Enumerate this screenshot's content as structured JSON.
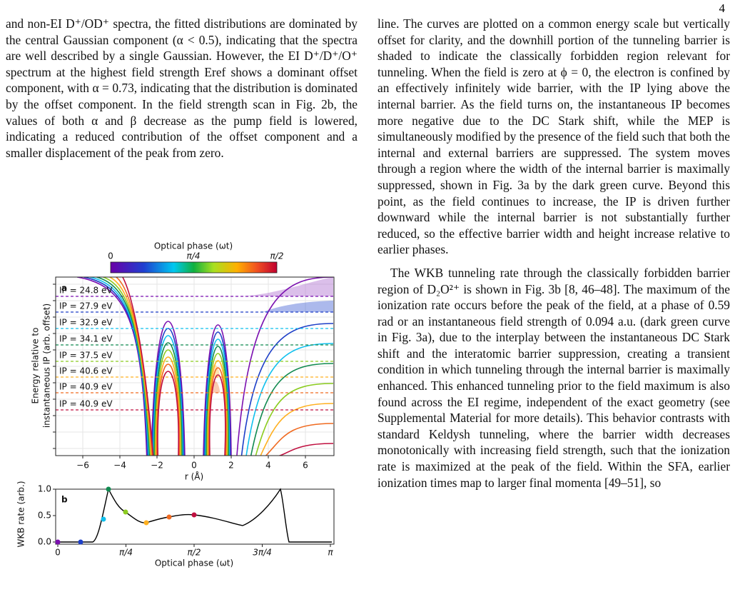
{
  "page_number": "4",
  "left_column": {
    "paragraphs": [
      "and non-EI D⁺/OD⁺ spectra, the fitted distributions are dominated by the central Gaussian component (α < 0.5), indicating that the spectra are well described by a single Gaussian. However, the EI D⁺/D⁺/O⁺ spectrum at the highest field strength Eref shows a dominant offset component, with α = 0.73, indicating that the distribution is dominated by the offset component. In the field strength scan in Fig. 2b, the values of both α and β decrease as the pump field is lowered, indicating a reduced contribution of the offset component and a smaller displacement of the peak from zero."
    ]
  },
  "figure": {
    "colorbar": {
      "label": "Optical phase (ωt)",
      "ticks": [
        "0",
        "π/4",
        "π/2"
      ]
    },
    "panel_a": {
      "label": "a",
      "ip_labels": [
        "IP = 24.8 eV",
        "IP = 27.9 eV",
        "IP = 32.9 eV",
        "IP = 34.1 eV",
        "IP = 37.5 eV",
        "IP = 40.6 eV",
        "IP = 40.9 eV",
        "IP = 40.9 eV"
      ],
      "x_ticks": [
        "−6",
        "−4",
        "−2",
        "0",
        "2",
        "4",
        "6"
      ],
      "x_label": "r (Å)",
      "y_label": [
        "Energy relative to",
        "instantaneous IP (arb. offset)"
      ]
    },
    "panel_b": {
      "label": "b",
      "y_ticks": [
        "0.0",
        "0.5",
        "1.0"
      ],
      "x_ticks": [
        "0",
        "π/4",
        "π/2",
        "3π/4",
        "π"
      ],
      "x_label": "Optical phase (ωt)",
      "y_label": "WKB rate (arb.)"
    }
  },
  "right_column": {
    "paragraphs": [
      "line. The curves are plotted on a common energy scale but vertically offset for clarity, and the downhill portion of the tunneling barrier is shaded to indicate the classically forbidden region relevant for tunneling. When the field is zero at ϕ = 0, the electron is confined by an effectively infinitely wide barrier, with the IP lying above the internal barrier. As the field turns on, the instantaneous IP becomes more negative due to the DC Stark shift, while the MEP is simultaneously modified by the presence of the field such that both the internal and external barriers are suppressed. The system moves through a region where the width of the internal barrier is maximally suppressed, shown in Fig. 3a by the dark green curve. Beyond this point, as the field continues to increase, the IP is driven further downward while the internal barrier is not substantially further reduced, so the effective barrier width and height increase relative to earlier phases.",
      "The WKB tunneling rate through the classically forbidden barrier region of D₂O²⁺ is shown in Fig. 3b [8, 46–48]. The maximum of the ionization rate occurs before the peak of the field, at a phase of 0.59 rad or an instantaneous field strength of 0.094 a.u. (dark green curve in Fig. 3a), due to the interplay between the instantaneous DC Stark shift and the interatomic barrier suppression, creating a transient condition in which tunneling through the internal barrier is maximally enhanced. This enhanced tunneling prior to the field maximum is also found across the EI regime, independent of the exact geometry (see Supplemental Material for more details). This behavior contrasts with standard Keldysh tunneling, where the barrier width decreases monotonically with increasing field strength, such that the ionization rate is maximized at the peak of the field. Within the SFA, earlier ionization times map to larger final momenta [49–51], so"
    ]
  }
}
